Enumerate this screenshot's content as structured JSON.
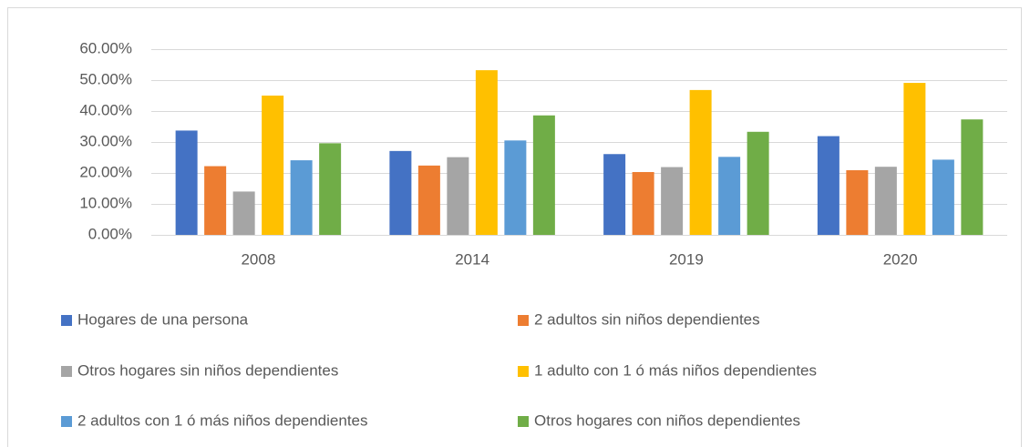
{
  "chart_data": {
    "type": "bar",
    "categories": [
      "2008",
      "2014",
      "2019",
      "2020"
    ],
    "series": [
      {
        "name": "Hogares de una persona",
        "color": "#4472c4",
        "values": [
          33.7,
          27.1,
          26.1,
          31.9
        ]
      },
      {
        "name": "2 adultos sin niños dependientes",
        "color": "#ed7d31",
        "values": [
          22.2,
          22.4,
          20.3,
          20.9
        ]
      },
      {
        "name": "Otros hogares sin niños dependientes",
        "color": "#a5a5a5",
        "values": [
          14.0,
          25.1,
          21.9,
          22.0
        ]
      },
      {
        "name": "1 adulto con 1 ó más niños dependientes",
        "color": "#ffc000",
        "values": [
          45.0,
          53.2,
          46.8,
          49.1
        ]
      },
      {
        "name": "2 adultos con 1 ó más niños dependientes",
        "color": "#5b9bd5",
        "values": [
          24.1,
          30.5,
          25.2,
          24.3
        ]
      },
      {
        "name": "Otros hogares con niños dependientes",
        "color": "#70ad47",
        "values": [
          29.6,
          38.6,
          33.3,
          37.3
        ]
      }
    ],
    "ylim": [
      0,
      60
    ],
    "yticks": [
      {
        "value": 0,
        "label": "0.00%"
      },
      {
        "value": 10,
        "label": "10.00%"
      },
      {
        "value": 20,
        "label": "20.00%"
      },
      {
        "value": 30,
        "label": "30.00%"
      },
      {
        "value": 40,
        "label": "40.00%"
      },
      {
        "value": 50,
        "label": "50.00%"
      },
      {
        "value": 60,
        "label": "60.00%"
      }
    ],
    "grid": true,
    "legend": "bottom"
  }
}
